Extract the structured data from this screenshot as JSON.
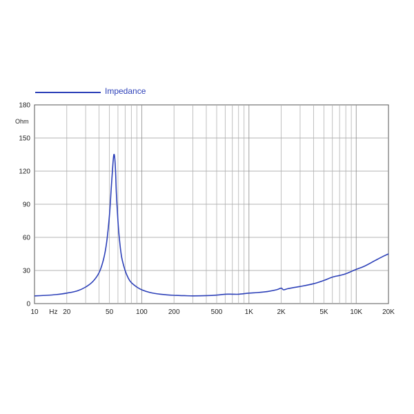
{
  "chart_data": {
    "type": "line",
    "title": "",
    "xlabel": "",
    "ylabel": "Ohm",
    "x_scale": "log",
    "xlim": [
      10,
      20000
    ],
    "ylim": [
      0,
      180
    ],
    "grid": true,
    "legend_position": "top-left",
    "x_tick_labels": [
      {
        "value": 10,
        "label": "10"
      },
      {
        "value": 15,
        "label": "Hz"
      },
      {
        "value": 20,
        "label": "20"
      },
      {
        "value": 50,
        "label": "50"
      },
      {
        "value": 100,
        "label": "100"
      },
      {
        "value": 200,
        "label": "200"
      },
      {
        "value": 500,
        "label": "500"
      },
      {
        "value": 1000,
        "label": "1K"
      },
      {
        "value": 2000,
        "label": "2K"
      },
      {
        "value": 5000,
        "label": "5K"
      },
      {
        "value": 10000,
        "label": "10K"
      },
      {
        "value": 20000,
        "label": "20K"
      }
    ],
    "y_ticks": [
      0,
      30,
      60,
      90,
      120,
      150,
      180
    ],
    "series": [
      {
        "name": "Impedance",
        "color": "#2b3fb8",
        "x": [
          10,
          13,
          16,
          20,
          25,
          30,
          35,
          40,
          44,
          47,
          50,
          52,
          54,
          55,
          56,
          57,
          58,
          60,
          62,
          65,
          70,
          75,
          80,
          90,
          100,
          120,
          150,
          200,
          250,
          300,
          400,
          500,
          600,
          700,
          800,
          1000,
          1200,
          1500,
          1800,
          2000,
          2100,
          2300,
          2600,
          3000,
          4000,
          5000,
          6000,
          7000,
          8000,
          10000,
          12000,
          15000,
          18000,
          20000
        ],
        "y": [
          7,
          7.5,
          8.2,
          9.5,
          11.5,
          15,
          20,
          28,
          40,
          55,
          80,
          105,
          128,
          135,
          132,
          120,
          100,
          75,
          58,
          42,
          30,
          23,
          19,
          15,
          12.5,
          10,
          8.5,
          7.5,
          7.2,
          7,
          7.2,
          7.7,
          8.5,
          8.5,
          8.5,
          9.5,
          10,
          11,
          12.5,
          14,
          12.5,
          13.5,
          14.5,
          15.5,
          18,
          21,
          24,
          25.5,
          27,
          31,
          34,
          39,
          43,
          45
        ]
      }
    ]
  }
}
